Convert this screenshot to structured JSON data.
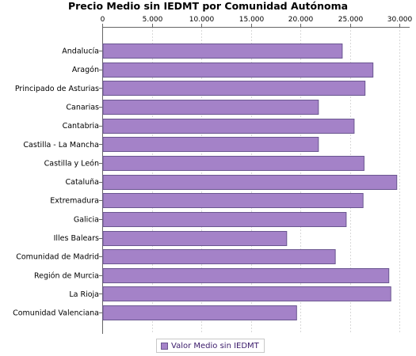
{
  "chart_data": {
    "type": "bar",
    "orientation": "horizontal",
    "title": "Precio Medio sin IEDMT por Comunidad Autónoma",
    "categories": [
      "Andalucía",
      "Aragón",
      "Principado de Asturias",
      "Canarias",
      "Cantabria",
      "Castilla - La Mancha",
      "Castilla y León",
      "Cataluña",
      "Extremadura",
      "Galicia",
      "Illes Balears",
      "Comunidad de Madrid",
      "Región de Murcia",
      "La Rioja",
      "Comunidad Valenciana"
    ],
    "series": [
      {
        "name": "Valor Medio sin IEDMT",
        "values": [
          24200,
          27300,
          26500,
          21800,
          25400,
          21800,
          26400,
          29700,
          26300,
          24600,
          18600,
          23500,
          28900,
          29100,
          19600
        ]
      }
    ],
    "xlim": [
      0,
      31000
    ],
    "xticks": [
      0,
      5000,
      10000,
      15000,
      20000,
      25000,
      30000
    ],
    "xtick_labels": [
      "0",
      "5.000",
      "10.000",
      "15.000",
      "20.000",
      "25.000",
      "30.000"
    ],
    "xaxis_position": "top",
    "grid": "vertical dashed",
    "legend_position": "bottom-center",
    "colors": {
      "bar_fill": "#a482c8",
      "bar_stroke": "#6a5690",
      "grid": "#d8d8d8"
    }
  }
}
